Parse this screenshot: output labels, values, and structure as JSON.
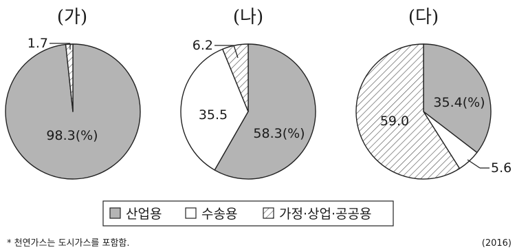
{
  "colors": {
    "industrial": "#b4b4b4",
    "transport": "#ffffff",
    "residential_hatch": "#555555",
    "outline": "#222222"
  },
  "chart_data": [
    {
      "type": "pie",
      "title": "(가)",
      "start": "12 o'clock, clockwise",
      "slices": [
        {
          "series": "산업용",
          "value": 98.3,
          "label": "98.3(%)"
        },
        {
          "series": "가정·상업·공공용",
          "value": 1.7,
          "label": "1.7"
        }
      ]
    },
    {
      "type": "pie",
      "title": "(나)",
      "start": "12 o'clock, clockwise",
      "slices": [
        {
          "series": "산업용",
          "value": 58.3,
          "label": "58.3(%)"
        },
        {
          "series": "수송용",
          "value": 35.5,
          "label": "35.5"
        },
        {
          "series": "가정·상업·공공용",
          "value": 6.2,
          "label": "6.2"
        }
      ]
    },
    {
      "type": "pie",
      "title": "(다)",
      "start": "12 o'clock, clockwise",
      "slices": [
        {
          "series": "산업용",
          "value": 35.4,
          "label": "35.4(%)"
        },
        {
          "series": "수송용",
          "value": 5.6,
          "label": "5.6"
        },
        {
          "series": "가정·상업·공공용",
          "value": 59.0,
          "label": "59.0"
        }
      ]
    }
  ],
  "legend": {
    "placement": "bottom-center",
    "items": [
      {
        "key": "산업용",
        "fill": "gray"
      },
      {
        "key": "수송용",
        "fill": "white"
      },
      {
        "key": "가정·상업·공공용",
        "fill": "hatch"
      }
    ]
  },
  "footnote": "* 천연가스는 도시가스를 포함함.",
  "year": "(2016)"
}
